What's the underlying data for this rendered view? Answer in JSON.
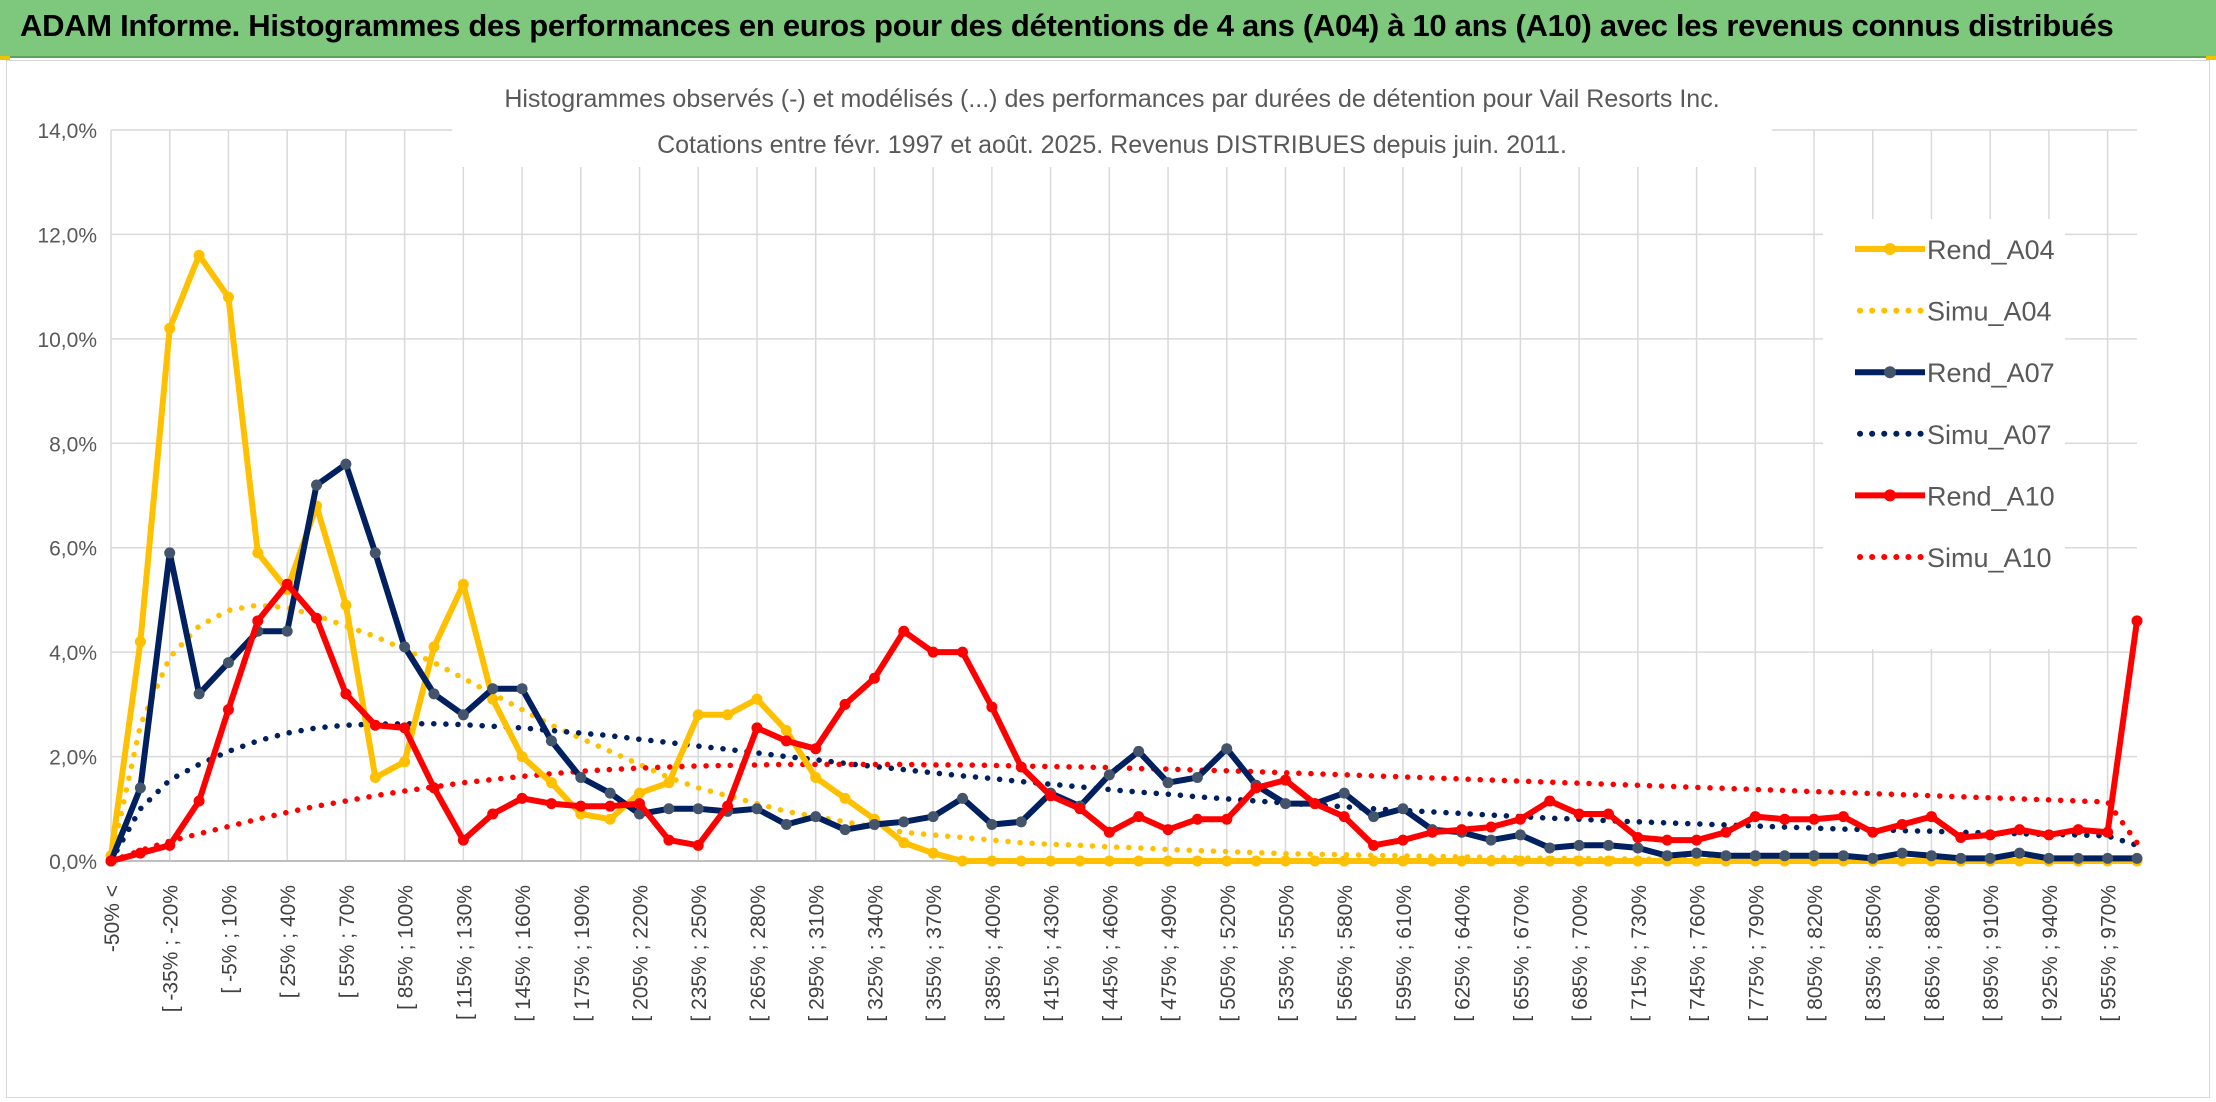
{
  "banner": {
    "title": "ADAM Informe. Histogrammes des performances en euros pour des détentions de 4 ans (A04) à 10 ans (A10) avec les revenus connus distribués"
  },
  "colors": {
    "A04": "#ffc000",
    "A07": "#002060",
    "A07_marker": "#44546a",
    "A10": "#ff0000",
    "banner": "#7ec87e",
    "grid": "#d9d9d9"
  },
  "chart_data": {
    "type": "line",
    "title_lines": [
      "Histogrammes observés (-) et modélisés (...) des performances par durées de détention pour Vail Resorts Inc.",
      "Cotations entre févr. 1997 et août. 2025. Revenus DISTRIBUES depuis juin. 2011."
    ],
    "y_ticks": [
      "0,0%",
      "2,0%",
      "4,0%",
      "6,0%",
      "8,0%",
      "10,0%",
      "12,0%",
      "14,0%"
    ],
    "ylim": [
      0,
      14
    ],
    "y_unit": "%",
    "grid": true,
    "legend_position": "right",
    "x_tick_labels": [
      "-50% <",
      "[ -35% ; -20%",
      "[ -5% ; 10%",
      "[ 25% ; 40%",
      "[ 55% ; 70%",
      "[ 85% ; 100%",
      "[ 115% ; 130%",
      "[ 145% ; 160%",
      "[ 175% ; 190%",
      "[ 205% ; 220%",
      "[ 235% ; 250%",
      "[ 265% ; 280%",
      "[ 295% ; 310%",
      "[ 325% ; 340%",
      "[ 355% ; 370%",
      "[ 385% ; 400%",
      "[ 415% ; 430%",
      "[ 445% ; 460%",
      "[ 475% ; 490%",
      "[ 505% ; 520%",
      "[ 535% ; 550%",
      "[ 565% ; 580%",
      "[ 595% ; 610%",
      "[ 625% ; 640%",
      "[ 655% ; 670%",
      "[ 685% ; 700%",
      "[ 715% ; 730%",
      "[ 745% ; 760%",
      "[ 775% ; 790%",
      "[ 805% ; 820%",
      "[ 835% ; 850%",
      "[ 865% ; 880%",
      "[ 895% ; 910%",
      "[ 925% ; 940%",
      "[ 955% ; 970%"
    ],
    "bin_count": 70,
    "series": [
      {
        "name": "Rend_A04",
        "style": "solid",
        "color": "#ffc000",
        "values": [
          0.1,
          4.2,
          10.2,
          11.6,
          10.8,
          5.9,
          5.2,
          6.8,
          4.9,
          1.6,
          1.9,
          4.1,
          5.3,
          3.1,
          2.0,
          1.5,
          0.9,
          0.8,
          1.3,
          1.5,
          2.8,
          2.8,
          3.1,
          2.5,
          1.6,
          1.2,
          0.8,
          0.35,
          0.15,
          0,
          0,
          0,
          0,
          0,
          0,
          0,
          0,
          0,
          0,
          0,
          0,
          0,
          0,
          0,
          0,
          0,
          0,
          0,
          0,
          0,
          0,
          0,
          0,
          0,
          0,
          0,
          0,
          0,
          0,
          0,
          0,
          0,
          0,
          0,
          0,
          0,
          0,
          0,
          0,
          0
        ]
      },
      {
        "name": "Simu_A04",
        "style": "dotted",
        "color": "#ffc000",
        "values": [
          0,
          2.6,
          3.9,
          4.5,
          4.8,
          4.9,
          4.85,
          4.7,
          4.5,
          4.3,
          4.05,
          3.8,
          3.5,
          3.2,
          2.9,
          2.6,
          2.35,
          2.1,
          1.85,
          1.6,
          1.4,
          1.25,
          1.1,
          0.95,
          0.85,
          0.75,
          0.65,
          0.55,
          0.5,
          0.45,
          0.4,
          0.35,
          0.32,
          0.3,
          0.27,
          0.25,
          0.22,
          0.2,
          0.18,
          0.16,
          0.14,
          0.13,
          0.12,
          0.11,
          0.1,
          0.09,
          0.08,
          0.07,
          0.06,
          0.05,
          0.05,
          0.04,
          0.04,
          0.03,
          0.03,
          0.03,
          0.02,
          0.02,
          0.02,
          0.02,
          0.01,
          0.01,
          0.01,
          0.01,
          0.01,
          0.01,
          0.01,
          0.01,
          0.01,
          0.01
        ]
      },
      {
        "name": "Rend_A07",
        "style": "solid",
        "color": "#002060",
        "values": [
          0,
          1.4,
          5.9,
          3.2,
          3.8,
          4.4,
          4.4,
          7.2,
          7.6,
          5.9,
          4.1,
          3.2,
          2.8,
          3.3,
          3.3,
          2.3,
          1.6,
          1.3,
          0.9,
          1.0,
          1.0,
          0.95,
          1.0,
          0.7,
          0.85,
          0.6,
          0.7,
          0.75,
          0.85,
          1.2,
          0.7,
          0.75,
          1.3,
          1.05,
          1.65,
          2.1,
          1.5,
          1.6,
          2.15,
          1.45,
          1.1,
          1.1,
          1.3,
          0.85,
          1.0,
          0.6,
          0.55,
          0.4,
          0.5,
          0.25,
          0.3,
          0.3,
          0.25,
          0.1,
          0.15,
          0.1,
          0.1,
          0.1,
          0.1,
          0.1,
          0.05,
          0.15,
          0.1,
          0.05,
          0.05,
          0.15,
          0.05,
          0.05,
          0.05,
          0.05
        ]
      },
      {
        "name": "Simu_A07",
        "style": "dotted",
        "color": "#002060",
        "values": [
          0,
          1.0,
          1.55,
          1.85,
          2.1,
          2.3,
          2.45,
          2.55,
          2.6,
          2.62,
          2.63,
          2.63,
          2.61,
          2.58,
          2.55,
          2.5,
          2.45,
          2.4,
          2.33,
          2.27,
          2.2,
          2.14,
          2.07,
          2.0,
          1.94,
          1.87,
          1.81,
          1.75,
          1.69,
          1.63,
          1.58,
          1.52,
          1.47,
          1.42,
          1.37,
          1.32,
          1.28,
          1.23,
          1.19,
          1.15,
          1.11,
          1.07,
          1.04,
          1.0,
          0.97,
          0.94,
          0.91,
          0.88,
          0.85,
          0.82,
          0.8,
          0.77,
          0.75,
          0.73,
          0.71,
          0.69,
          0.67,
          0.65,
          0.63,
          0.61,
          0.6,
          0.58,
          0.57,
          0.55,
          0.54,
          0.52,
          0.51,
          0.5,
          0.48,
          0.3
        ]
      },
      {
        "name": "Rend_A10",
        "style": "solid",
        "color": "#ff0000",
        "values": [
          0,
          0.15,
          0.3,
          1.15,
          2.9,
          4.6,
          5.3,
          4.65,
          3.2,
          2.6,
          2.55,
          1.4,
          0.4,
          0.9,
          1.2,
          1.1,
          1.05,
          1.05,
          1.1,
          0.4,
          0.3,
          1.05,
          2.55,
          2.3,
          2.15,
          3.0,
          3.5,
          4.4,
          4.0,
          4.0,
          2.95,
          1.8,
          1.25,
          1.0,
          0.55,
          0.85,
          0.6,
          0.8,
          0.8,
          1.4,
          1.55,
          1.1,
          0.85,
          0.3,
          0.4,
          0.55,
          0.6,
          0.65,
          0.8,
          1.15,
          0.9,
          0.9,
          0.45,
          0.4,
          0.4,
          0.55,
          0.85,
          0.8,
          0.8,
          0.85,
          0.55,
          0.7,
          0.85,
          0.45,
          0.5,
          0.6,
          0.5,
          0.6,
          0.55,
          4.6
        ]
      },
      {
        "name": "Simu_A10",
        "style": "dotted",
        "color": "#ff0000",
        "values": [
          0,
          0.2,
          0.38,
          0.52,
          0.66,
          0.8,
          0.93,
          1.05,
          1.15,
          1.25,
          1.34,
          1.42,
          1.5,
          1.56,
          1.62,
          1.67,
          1.72,
          1.75,
          1.78,
          1.8,
          1.82,
          1.83,
          1.84,
          1.85,
          1.85,
          1.85,
          1.85,
          1.85,
          1.84,
          1.84,
          1.83,
          1.82,
          1.81,
          1.8,
          1.79,
          1.77,
          1.76,
          1.74,
          1.73,
          1.71,
          1.69,
          1.67,
          1.65,
          1.63,
          1.61,
          1.59,
          1.57,
          1.55,
          1.53,
          1.51,
          1.49,
          1.47,
          1.45,
          1.43,
          1.41,
          1.39,
          1.37,
          1.35,
          1.33,
          1.31,
          1.29,
          1.27,
          1.25,
          1.23,
          1.21,
          1.19,
          1.17,
          1.15,
          1.13,
          0.35
        ]
      }
    ]
  }
}
